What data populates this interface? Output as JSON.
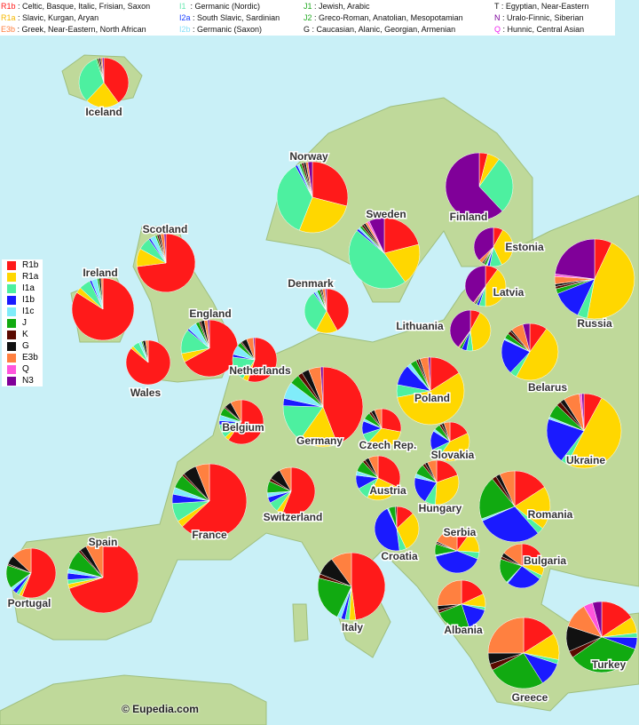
{
  "legend_top": {
    "columns": [
      [
        {
          "code": "R1b",
          "desc": ": Celtic, Basque, Italic, Frisian, Saxon",
          "color": "#ff1a1a"
        },
        {
          "code": "R1a",
          "desc": ": Slavic, Kurgan, Aryan",
          "color": "#ffcc00"
        },
        {
          "code": "E3b",
          "desc": ": Greek, Near-Eastern, North African",
          "color": "#ff7f3f"
        }
      ],
      [
        {
          "code": "I1",
          "desc": "  : Germanic (Nordic)",
          "color": "#66f0b0"
        },
        {
          "code": "I2a",
          "desc": ": South Slavic, Sardinian",
          "color": "#1a3fff"
        },
        {
          "code": "I2b",
          "desc": ": Germanic (Saxon)",
          "color": "#88e8f8"
        }
      ],
      [
        {
          "code": "J1",
          "desc": ": Jewish, Arabic",
          "color": "#22aa22"
        },
        {
          "code": "J2",
          "desc": ": Greco-Roman, Anatolian, Mesopotamian",
          "color": "#22aa22"
        },
        {
          "code": "G",
          "desc": ": Caucasian, Alanic, Georgian, Armenian",
          "color": "#111111"
        }
      ],
      [
        {
          "code": "T",
          "desc": ": Egyptian, Near-Eastern",
          "color": "#111111"
        },
        {
          "code": "N",
          "desc": ": Uralo-Finnic, Siberian",
          "color": "#7a0099"
        },
        {
          "code": "Q",
          "desc": ": Hunnic, Central Asian",
          "color": "#ee22ee"
        }
      ]
    ]
  },
  "side_legend": [
    {
      "label": "R1b",
      "color": "#ff1a1a"
    },
    {
      "label": "R1a",
      "color": "#ffd700"
    },
    {
      "label": "I1a",
      "color": "#4df0a0"
    },
    {
      "label": "I1b",
      "color": "#1a1aff"
    },
    {
      "label": "I1c",
      "color": "#80ecfa"
    },
    {
      "label": "J",
      "color": "#11aa11"
    },
    {
      "label": "K",
      "color": "#5a0a00"
    },
    {
      "label": "G",
      "color": "#111111"
    },
    {
      "label": "E3b",
      "color": "#ff8040"
    },
    {
      "label": "Q",
      "color": "#ff55dd"
    },
    {
      "label": "N3",
      "color": "#800099"
    }
  ],
  "credit": "© Eupedia.com",
  "chart_data": {
    "type": "pie",
    "haplogroups": [
      "R1b",
      "R1a",
      "I1a",
      "I1b",
      "I1c",
      "J",
      "K",
      "G",
      "E3b",
      "Q",
      "N3"
    ],
    "pies": [
      {
        "country": "Iceland",
        "values": [
          40,
          22,
          33,
          0,
          0,
          1,
          1,
          1,
          1,
          0,
          1
        ]
      },
      {
        "country": "Norway",
        "values": [
          29,
          27,
          36,
          1,
          1,
          1,
          1,
          1,
          1,
          0,
          2
        ]
      },
      {
        "country": "Finland",
        "values": [
          4,
          6,
          28,
          0,
          0,
          0,
          0,
          0,
          0,
          0,
          62
        ]
      },
      {
        "country": "Sweden",
        "values": [
          21,
          19,
          46,
          1,
          1,
          1,
          1,
          1,
          1,
          1,
          7
        ]
      },
      {
        "country": "Scotland",
        "values": [
          73,
          10,
          7,
          1,
          3,
          1,
          1,
          1,
          2,
          0,
          1
        ]
      },
      {
        "country": "Ireland",
        "values": [
          84,
          3,
          6,
          1,
          3,
          1,
          0,
          1,
          1,
          0,
          0
        ]
      },
      {
        "country": "England",
        "values": [
          67,
          5,
          14,
          1,
          5,
          2,
          1,
          2,
          2,
          0,
          1
        ]
      },
      {
        "country": "Wales",
        "values": [
          86,
          2,
          5,
          0,
          2,
          1,
          0,
          2,
          2,
          0,
          0
        ]
      },
      {
        "country": "Denmark",
        "values": [
          42,
          16,
          32,
          1,
          2,
          2,
          1,
          1,
          2,
          0,
          1
        ]
      },
      {
        "country": "Estonia",
        "values": [
          8,
          35,
          10,
          2,
          1,
          2,
          1,
          1,
          3,
          0,
          37
        ]
      },
      {
        "country": "Latvia",
        "values": [
          10,
          40,
          5,
          2,
          0,
          1,
          0,
          1,
          1,
          0,
          40
        ]
      },
      {
        "country": "Lithuania",
        "values": [
          8,
          40,
          5,
          4,
          0,
          2,
          0,
          0,
          1,
          0,
          40
        ]
      },
      {
        "country": "Russia",
        "values": [
          7,
          46,
          4,
          12,
          0,
          2,
          1,
          1,
          3,
          1,
          23
        ]
      },
      {
        "country": "Belarus",
        "values": [
          10,
          48,
          4,
          20,
          1,
          3,
          2,
          1,
          7,
          0,
          4
        ]
      },
      {
        "country": "Netherlands",
        "values": [
          55,
          4,
          18,
          2,
          7,
          3,
          1,
          4,
          5,
          0,
          1
        ]
      },
      {
        "country": "Germany",
        "values": [
          45,
          16,
          16,
          3,
          7,
          4,
          2,
          3,
          5,
          0,
          1
        ]
      },
      {
        "country": "Poland",
        "values": [
          16,
          56,
          6,
          10,
          2,
          3,
          1,
          1,
          4,
          0,
          1
        ]
      },
      {
        "country": "Belgium",
        "values": [
          60,
          3,
          10,
          3,
          4,
          6,
          1,
          5,
          8,
          0,
          0
        ]
      },
      {
        "country": "Ukraine",
        "values": [
          8,
          50,
          3,
          20,
          1,
          6,
          2,
          2,
          7,
          1,
          1
        ]
      },
      {
        "country": "Czech Rep.",
        "values": [
          28,
          34,
          8,
          11,
          2,
          6,
          2,
          3,
          6,
          0,
          0
        ]
      },
      {
        "country": "Slovakia",
        "values": [
          18,
          42,
          8,
          16,
          2,
          5,
          2,
          2,
          5,
          0,
          0
        ]
      },
      {
        "country": "France",
        "values": [
          63,
          3,
          8,
          4,
          3,
          6,
          1,
          6,
          6,
          0,
          0
        ]
      },
      {
        "country": "Switzerland",
        "values": [
          56,
          4,
          7,
          4,
          3,
          8,
          2,
          8,
          8,
          0,
          0
        ]
      },
      {
        "country": "Austria",
        "values": [
          32,
          26,
          9,
          10,
          3,
          8,
          2,
          3,
          7,
          0,
          0
        ]
      },
      {
        "country": "Hungary",
        "values": [
          20,
          32,
          8,
          20,
          3,
          8,
          2,
          2,
          7,
          0,
          0
        ]
      },
      {
        "country": "Romania",
        "values": [
          16,
          20,
          3,
          30,
          1,
          20,
          2,
          2,
          7,
          0,
          0
        ]
      },
      {
        "country": "Spain",
        "values": [
          70,
          2,
          2,
          3,
          2,
          9,
          1,
          3,
          8,
          0,
          0
        ]
      },
      {
        "country": "Portugal",
        "values": [
          56,
          2,
          2,
          3,
          2,
          15,
          1,
          6,
          13,
          0,
          0
        ]
      },
      {
        "country": "Italy",
        "values": [
          48,
          3,
          2,
          2,
          2,
          22,
          2,
          9,
          10,
          0,
          0
        ]
      },
      {
        "country": "Croatia",
        "values": [
          13,
          30,
          5,
          45,
          1,
          5,
          0,
          1,
          0,
          0,
          0
        ]
      },
      {
        "country": "Serbia",
        "values": [
          10,
          16,
          5,
          40,
          1,
          8,
          1,
          1,
          18,
          0,
          0
        ]
      },
      {
        "country": "Bulgaria",
        "values": [
          17,
          15,
          3,
          26,
          1,
          18,
          2,
          3,
          15,
          0,
          0
        ]
      },
      {
        "country": "Albania",
        "values": [
          18,
          9,
          2,
          16,
          0,
          24,
          2,
          3,
          26,
          0,
          0
        ]
      },
      {
        "country": "Greece",
        "values": [
          16,
          12,
          2,
          11,
          0,
          26,
          3,
          5,
          25,
          0,
          0
        ]
      },
      {
        "country": "Turkey",
        "values": [
          15,
          7,
          2,
          5,
          0,
          33,
          3,
          11,
          11,
          4,
          4
        ]
      }
    ]
  }
}
